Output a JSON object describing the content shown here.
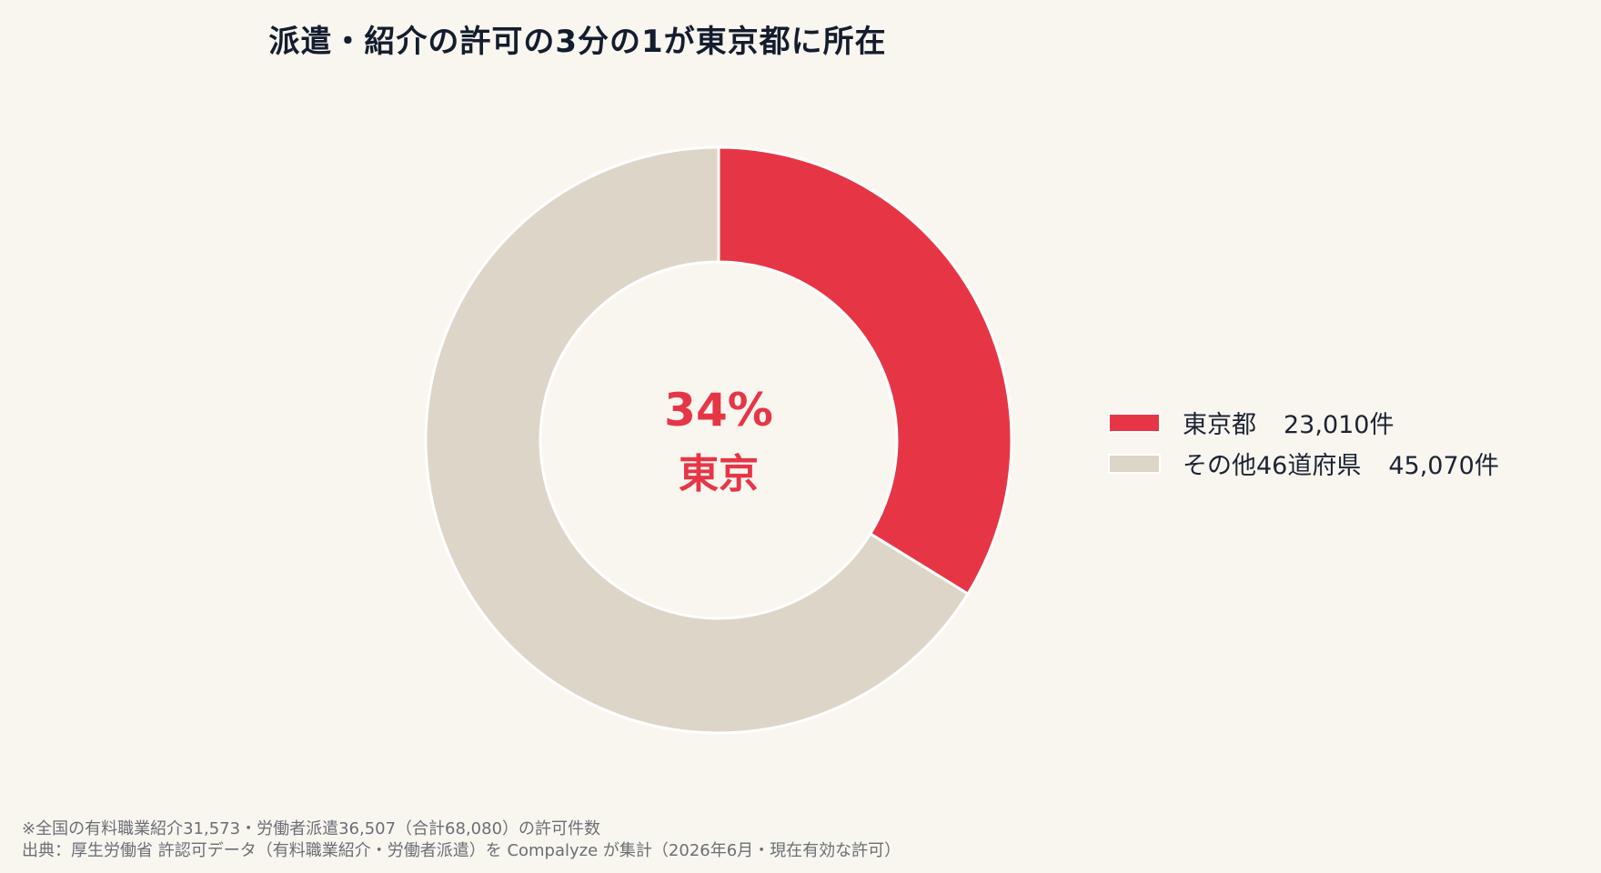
{
  "chart_data": {
    "type": "pie",
    "title": "派遣・紹介の許可の3分の1が東京都に所在",
    "center": {
      "value_text": "34%",
      "label": "東京"
    },
    "slices": [
      {
        "label": "東京都",
        "value": 23010,
        "value_text": "23,010件",
        "color": "#e63646"
      },
      {
        "label": "その他46道府県",
        "value": 45070,
        "value_text": "45,070件",
        "color": "#ddd5c8"
      }
    ],
    "legend_position": "right",
    "colors": {
      "background": "#f9f6f0",
      "accent": "#e63646",
      "muted": "#ddd5c8"
    }
  },
  "footnotes": {
    "note": "※全国の有料職業紹介31,573・労働者派遣36,507（合計68,080）の許可件数",
    "source": "出典：厚生労働省 許認可データ（有料職業紹介・労働者派遣）を Compalyze が集計（2026年6月・現在有効な許可）"
  }
}
